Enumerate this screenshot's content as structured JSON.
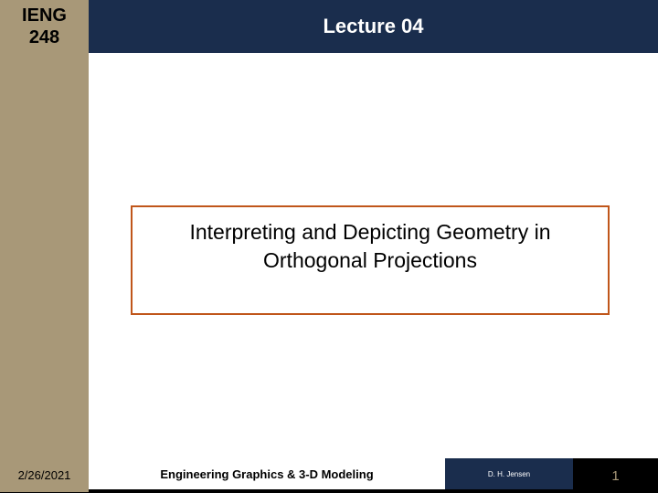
{
  "header": {
    "course_code": "IENG\n248",
    "lecture_title": "Lecture 04"
  },
  "content": {
    "main_title": "Interpreting and Depicting Geometry in\nOrthogonal Projections"
  },
  "footer": {
    "date": "2/26/2021",
    "course_name": "Engineering Graphics & 3-D Modeling",
    "author": "D. H. Jensen",
    "page_number": "1"
  },
  "colors": {
    "sidebar_bg": "#a89878",
    "header_bg": "#1a2d4d",
    "border_orange": "#c0561a",
    "footer_black": "#000000"
  }
}
